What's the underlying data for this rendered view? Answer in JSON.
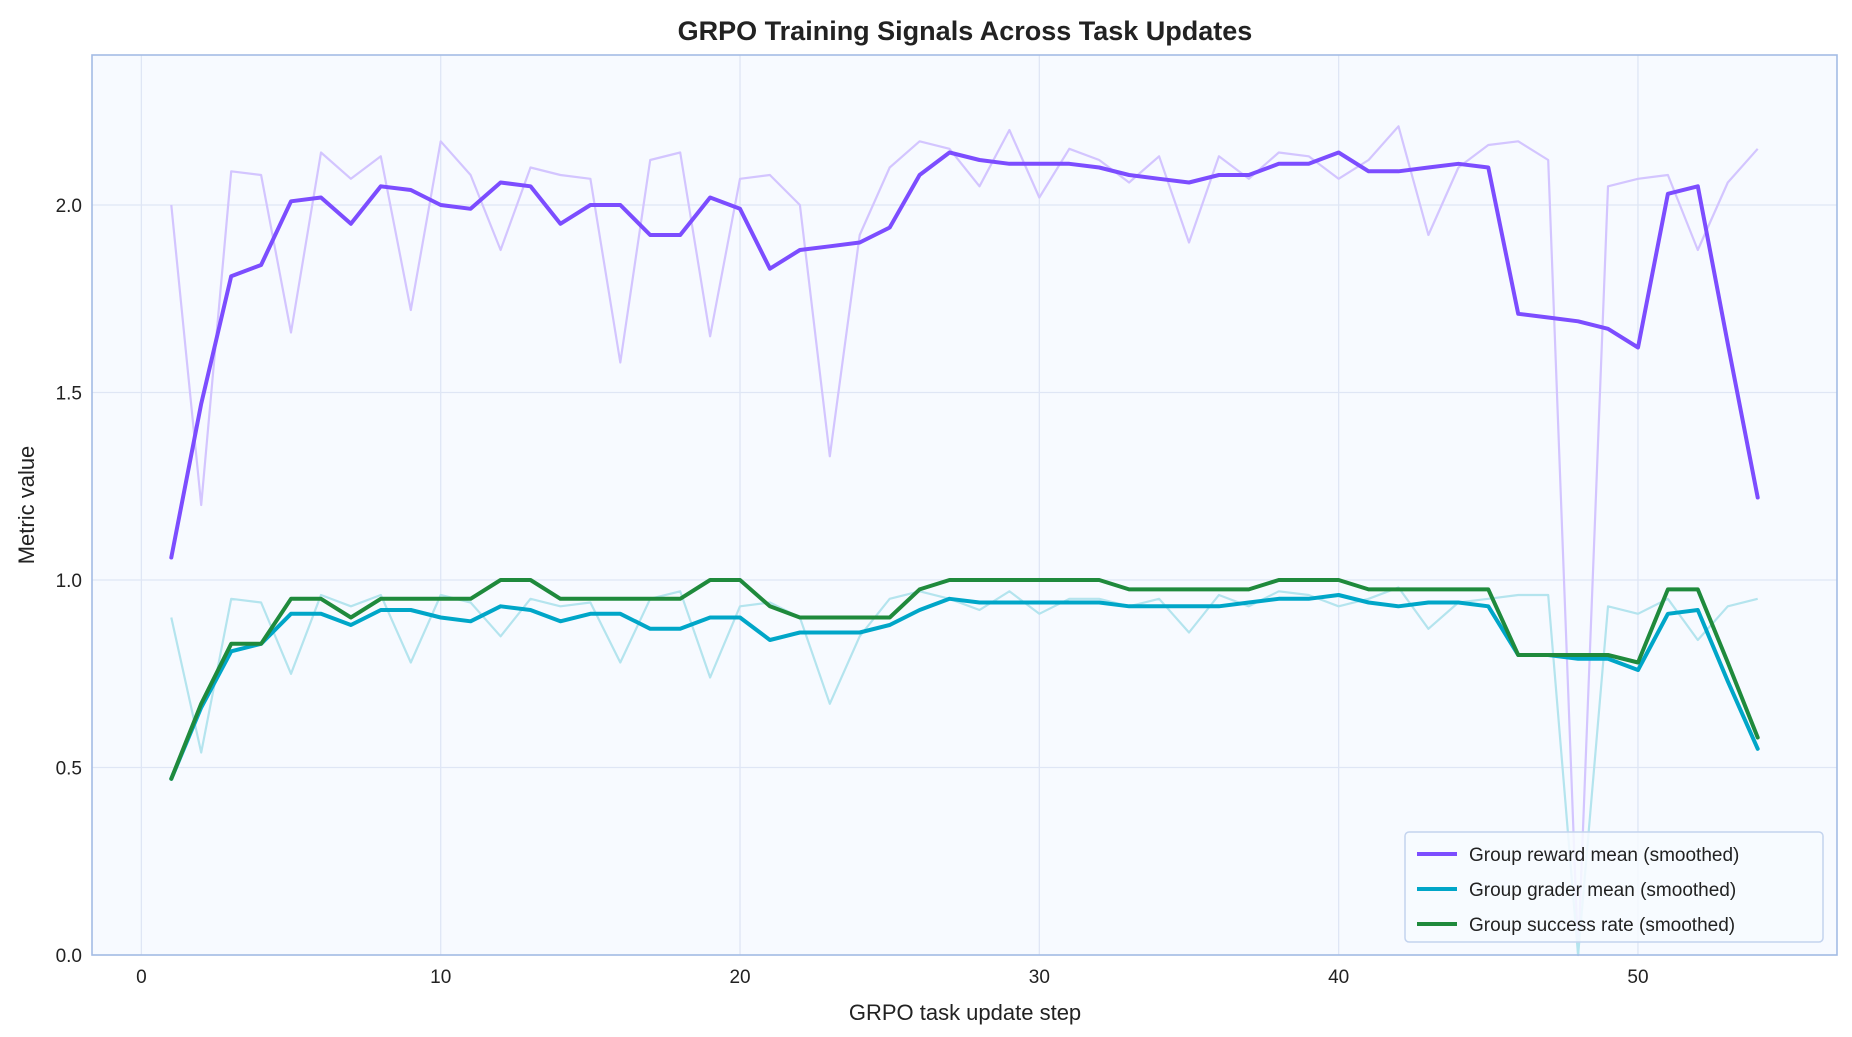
{
  "chart_data": {
    "type": "line",
    "title": "GRPO Training Signals Across Task Updates",
    "xlabel": "GRPO task update step",
    "ylabel": "Metric value",
    "xlim": [
      -1.65,
      56.65
    ],
    "ylim": [
      0,
      2.4
    ],
    "xticks": [
      0,
      10,
      20,
      30,
      40,
      50
    ],
    "yticks": [
      0.0,
      0.5,
      1.0,
      1.5,
      2.0
    ],
    "ytick_labels": [
      "0.0",
      "0.5",
      "1.0",
      "1.5",
      "2.0"
    ],
    "grid": true,
    "legend_position": "bottom-right",
    "x": [
      1,
      2,
      3,
      4,
      5,
      6,
      7,
      8,
      9,
      10,
      11,
      12,
      13,
      14,
      15,
      16,
      17,
      18,
      19,
      20,
      21,
      22,
      23,
      24,
      25,
      26,
      27,
      28,
      29,
      30,
      31,
      32,
      33,
      34,
      35,
      36,
      37,
      38,
      39,
      40,
      41,
      42,
      43,
      44,
      45,
      46,
      47,
      48,
      49,
      50,
      51,
      52,
      53,
      54
    ],
    "raw_series": [
      {
        "color": "#d3c5ff",
        "values": [
          2.0,
          1.2,
          2.09,
          2.08,
          1.66,
          2.14,
          2.07,
          2.13,
          1.72,
          2.17,
          2.08,
          1.88,
          2.1,
          2.08,
          2.07,
          1.58,
          2.12,
          2.14,
          1.65,
          2.07,
          2.08,
          2.0,
          1.33,
          1.92,
          2.1,
          2.17,
          2.15,
          2.05,
          2.2,
          2.02,
          2.15,
          2.12,
          2.06,
          2.13,
          1.9,
          2.13,
          2.07,
          2.14,
          2.13,
          2.07,
          2.12,
          2.21,
          1.92,
          2.1,
          2.16,
          2.17,
          2.12,
          0.0,
          2.05,
          2.07,
          2.08,
          1.88,
          2.06,
          2.15
        ]
      },
      {
        "color": "#b4e4ee",
        "values": [
          0.9,
          0.54,
          0.95,
          0.94,
          0.75,
          0.96,
          0.93,
          0.96,
          0.78,
          0.96,
          0.94,
          0.85,
          0.95,
          0.93,
          0.94,
          0.78,
          0.95,
          0.97,
          0.74,
          0.93,
          0.94,
          0.9,
          0.67,
          0.85,
          0.95,
          0.97,
          0.95,
          0.92,
          0.97,
          0.91,
          0.95,
          0.95,
          0.93,
          0.95,
          0.86,
          0.96,
          0.93,
          0.97,
          0.96,
          0.93,
          0.95,
          0.98,
          0.87,
          0.94,
          0.95,
          0.96,
          0.96,
          0.0,
          0.93,
          0.91,
          0.95,
          0.84,
          0.93,
          0.95
        ]
      }
    ],
    "series": [
      {
        "name": "Group reward mean (smoothed)",
        "color": "#7c4dff",
        "values": [
          1.06,
          1.47,
          1.81,
          1.84,
          2.01,
          2.02,
          1.95,
          2.05,
          2.04,
          2.0,
          1.99,
          2.06,
          2.05,
          1.95,
          2.0,
          2.0,
          1.92,
          1.92,
          2.02,
          1.99,
          1.83,
          1.88,
          1.89,
          1.9,
          1.94,
          2.08,
          2.14,
          2.12,
          2.11,
          2.11,
          2.11,
          2.1,
          2.08,
          2.07,
          2.06,
          2.08,
          2.08,
          2.11,
          2.11,
          2.14,
          2.09,
          2.09,
          2.1,
          2.11,
          2.1,
          1.71,
          1.7,
          1.69,
          1.67,
          1.62,
          2.03,
          2.05,
          1.63,
          1.22
        ]
      },
      {
        "name": "Group grader mean (smoothed)",
        "color": "#00a6c8",
        "values": [
          0.47,
          0.66,
          0.81,
          0.83,
          0.91,
          0.91,
          0.88,
          0.92,
          0.92,
          0.9,
          0.89,
          0.93,
          0.92,
          0.89,
          0.91,
          0.91,
          0.87,
          0.87,
          0.9,
          0.9,
          0.84,
          0.86,
          0.86,
          0.86,
          0.88,
          0.92,
          0.95,
          0.94,
          0.94,
          0.94,
          0.94,
          0.94,
          0.93,
          0.93,
          0.93,
          0.93,
          0.94,
          0.95,
          0.95,
          0.96,
          0.94,
          0.93,
          0.94,
          0.94,
          0.93,
          0.8,
          0.8,
          0.79,
          0.79,
          0.76,
          0.91,
          0.92,
          0.73,
          0.55
        ]
      },
      {
        "name": "Group success rate (smoothed)",
        "color": "#1f8a3c",
        "values": [
          0.47,
          0.67,
          0.83,
          0.83,
          0.95,
          0.95,
          0.9,
          0.95,
          0.95,
          0.95,
          0.95,
          1.0,
          1.0,
          0.95,
          0.95,
          0.95,
          0.95,
          0.95,
          1.0,
          1.0,
          0.93,
          0.9,
          0.9,
          0.9,
          0.9,
          0.975,
          1.0,
          1.0,
          1.0,
          1.0,
          1.0,
          1.0,
          0.975,
          0.975,
          0.975,
          0.975,
          0.975,
          1.0,
          1.0,
          1.0,
          0.975,
          0.975,
          0.975,
          0.975,
          0.975,
          0.8,
          0.8,
          0.8,
          0.8,
          0.78,
          0.975,
          0.975,
          0.78,
          0.58
        ]
      }
    ]
  }
}
